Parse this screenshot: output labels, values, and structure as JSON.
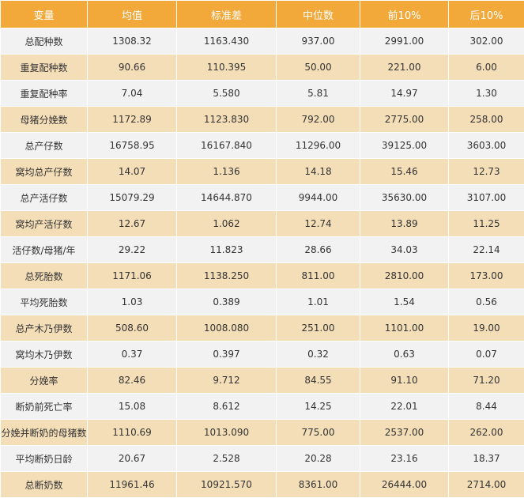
{
  "colors": {
    "header_bg": "#f2a93a",
    "header_text": "#ffffff",
    "row_light": "#f2f2f2",
    "row_tan": "#f4deb8"
  },
  "table": {
    "headers": [
      "变量",
      "均值",
      "标准差",
      "中位数",
      "前10%",
      "后10%"
    ],
    "rows": [
      [
        "总配种数",
        "1308.32",
        "1163.430",
        "937.00",
        "2991.00",
        "302.00"
      ],
      [
        "重复配种数",
        "90.66",
        "110.395",
        "50.00",
        "221.00",
        "6.00"
      ],
      [
        "重复配种率",
        "7.04",
        "5.580",
        "5.81",
        "14.97",
        "1.30"
      ],
      [
        "母猪分娩数",
        "1172.89",
        "1123.830",
        "792.00",
        "2775.00",
        "258.00"
      ],
      [
        "总产仔数",
        "16758.95",
        "16167.840",
        "11296.00",
        "39125.00",
        "3603.00"
      ],
      [
        "窝均总产仔数",
        "14.07",
        "1.136",
        "14.18",
        "15.46",
        "12.73"
      ],
      [
        "总产活仔数",
        "15079.29",
        "14644.870",
        "9944.00",
        "35630.00",
        "3107.00"
      ],
      [
        "窝均产活仔数",
        "12.67",
        "1.062",
        "12.74",
        "13.89",
        "11.25"
      ],
      [
        "活仔数/母猪/年",
        "29.22",
        "11.823",
        "28.66",
        "34.03",
        "22.14"
      ],
      [
        "总死胎数",
        "1171.06",
        "1138.250",
        "811.00",
        "2810.00",
        "173.00"
      ],
      [
        "平均死胎数",
        "1.03",
        "0.389",
        "1.01",
        "1.54",
        "0.56"
      ],
      [
        "总产木乃伊数",
        "508.60",
        "1008.080",
        "251.00",
        "1101.00",
        "19.00"
      ],
      [
        "窝均木乃伊数",
        "0.37",
        "0.397",
        "0.32",
        "0.63",
        "0.07"
      ],
      [
        "分娩率",
        "82.46",
        "9.712",
        "84.55",
        "91.10",
        "71.20"
      ],
      [
        "断奶前死亡率",
        "15.08",
        "8.612",
        "14.25",
        "22.01",
        "8.44"
      ],
      [
        "分娩并断奶的母猪数",
        "1110.69",
        "1013.090",
        "775.00",
        "2537.00",
        "262.00"
      ],
      [
        "平均断奶日龄",
        "20.67",
        "2.528",
        "20.28",
        "23.16",
        "18.37"
      ],
      [
        "总断奶数",
        "11961.46",
        "10921.570",
        "8361.00",
        "26444.00",
        "2714.00"
      ]
    ]
  }
}
